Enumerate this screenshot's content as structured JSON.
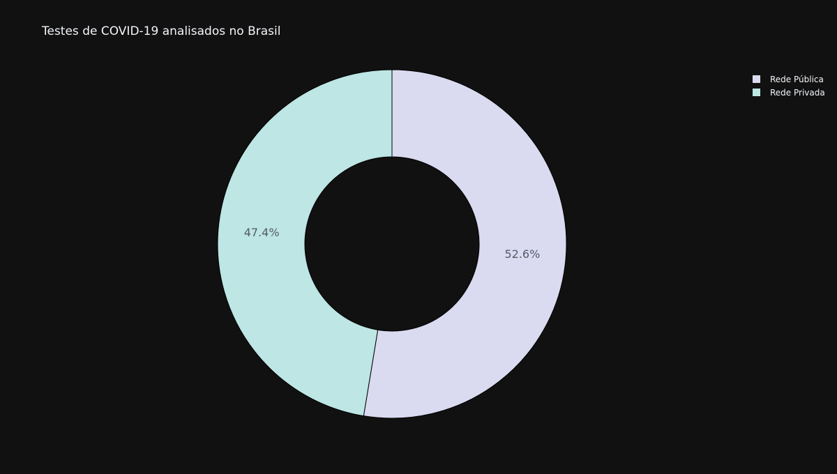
{
  "chart_data": {
    "type": "pie",
    "title": "Testes de COVID-19 analisados no Brasil",
    "labels": [
      "Rede Pública",
      "Rede Privada"
    ],
    "values": [
      52.6,
      47.4
    ],
    "percent_labels": [
      "52.6%",
      "47.4%"
    ],
    "colors": [
      "#dadbf0",
      "#bde6e4"
    ],
    "hole": 0.5,
    "direction": "clockwise",
    "start_angle_deg": 90,
    "legend_position": "top-right",
    "background": "#111111"
  }
}
